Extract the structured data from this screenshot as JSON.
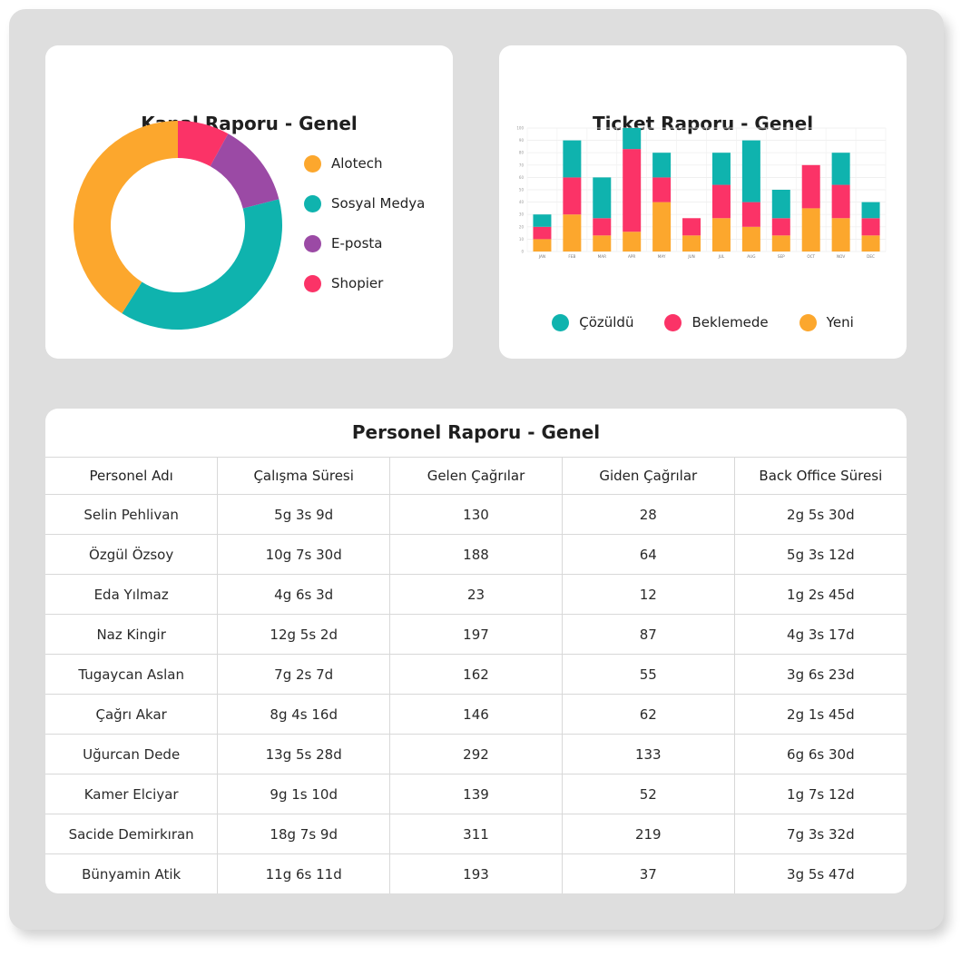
{
  "kanal_raporu": {
    "title": "Kanal Raporu - Genel",
    "chart_data": {
      "type": "pie",
      "style": "donut",
      "labels": [
        "Alotech",
        "Sosyal Medya",
        "E-posta",
        "Shopier"
      ],
      "values": [
        41,
        38,
        13,
        8
      ],
      "colors": [
        "#FCA72D",
        "#0FB3AE",
        "#9B4AA5",
        "#FB3367"
      ]
    }
  },
  "ticket_raporu": {
    "title": "Ticket Raporu - Genel",
    "chart_data": {
      "type": "bar",
      "stacked": true,
      "categories": [
        "JAN",
        "FEB",
        "MAR",
        "APR",
        "MAY",
        "JUN",
        "JUL",
        "AUG",
        "SEP",
        "OCT",
        "NOV",
        "DEC"
      ],
      "ylim": [
        0,
        100
      ],
      "yticks": [
        0,
        10,
        20,
        30,
        40,
        50,
        60,
        70,
        80,
        90,
        100
      ],
      "grid": true,
      "series": [
        {
          "name": "Yeni",
          "color": "#FCA72D",
          "values": [
            10,
            30,
            13,
            16,
            40,
            13,
            27,
            20,
            13,
            35,
            27,
            13
          ]
        },
        {
          "name": "Beklemede",
          "color": "#FB3367",
          "values": [
            10,
            30,
            14,
            67,
            20,
            14,
            27,
            20,
            14,
            35,
            27,
            14
          ]
        },
        {
          "name": "Çözüldü",
          "color": "#0FB3AE",
          "values": [
            10,
            30,
            33,
            17,
            20,
            0,
            26,
            50,
            23,
            0,
            26,
            13
          ]
        }
      ],
      "legend": [
        "Çözüldü",
        "Beklemede",
        "Yeni"
      ]
    }
  },
  "personel_raporu": {
    "title": "Personel Raporu - Genel",
    "columns": [
      "Personel Adı",
      "Çalışma Süresi",
      "Gelen Çağrılar",
      "Giden Çağrılar",
      "Back Office Süresi"
    ],
    "rows": [
      [
        "Selin Pehlivan",
        "5g 3s 9d",
        "130",
        "28",
        "2g 5s 30d"
      ],
      [
        "Özgül Özsoy",
        "10g 7s 30d",
        "188",
        "64",
        "5g 3s 12d"
      ],
      [
        "Eda Yılmaz",
        "4g 6s 3d",
        "23",
        "12",
        "1g 2s 45d"
      ],
      [
        "Naz Kingir",
        "12g 5s 2d",
        "197",
        "87",
        "4g 3s 17d"
      ],
      [
        "Tugaycan Aslan",
        "7g 2s 7d",
        "162",
        "55",
        "3g 6s 23d"
      ],
      [
        "Çağrı Akar",
        "8g 4s 16d",
        "146",
        "62",
        "2g 1s 45d"
      ],
      [
        "Uğurcan Dede",
        "13g 5s 28d",
        "292",
        "133",
        "6g 6s 30d"
      ],
      [
        "Kamer Elciyar",
        "9g 1s 10d",
        "139",
        "52",
        "1g 7s 12d"
      ],
      [
        "Sacide Demirkıran",
        "18g 7s 9d",
        "311",
        "219",
        "7g 3s 32d"
      ],
      [
        "Bünyamin Atik",
        "11g 6s 11d",
        "193",
        "37",
        "3g 5s 47d"
      ]
    ]
  }
}
